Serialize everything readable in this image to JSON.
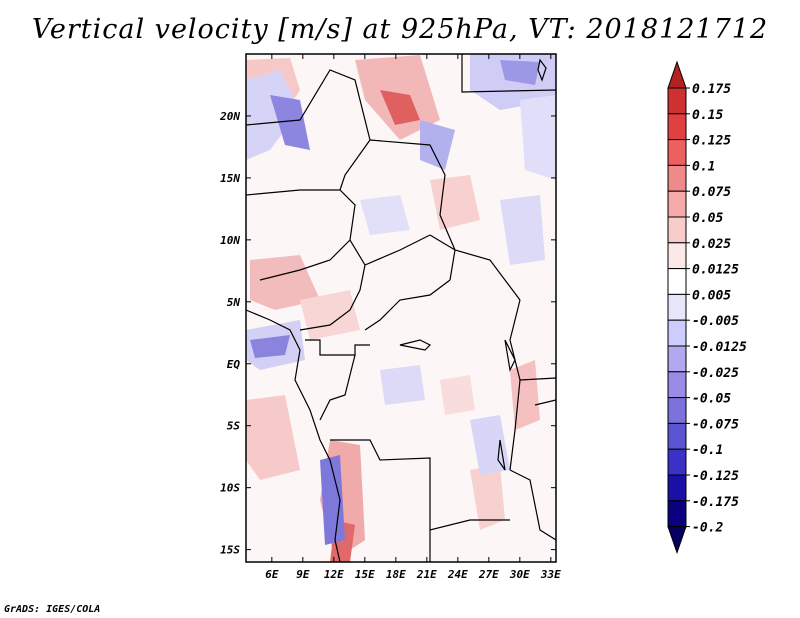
{
  "title": "Vertical velocity [m/s] at 925hPa, VT: 2018121712",
  "credit": "GrADS: IGES/COLA",
  "lon_ticks": [
    "6E",
    "9E",
    "12E",
    "15E",
    "18E",
    "21E",
    "24E",
    "27E",
    "30E",
    "33E"
  ],
  "lat_ticks": [
    "20N",
    "15N",
    "10N",
    "5N",
    "EQ",
    "5S",
    "10S",
    "15S"
  ],
  "colorbar": {
    "labels": [
      "0.175",
      "0.15",
      "0.125",
      "0.1",
      "0.075",
      "0.05",
      "0.025",
      "0.0125",
      "0.005",
      "-0.005",
      "-0.0125",
      "-0.025",
      "-0.05",
      "-0.075",
      "-0.1",
      "-0.125",
      "-0.175",
      "-0.2"
    ],
    "colors": [
      "#b22222",
      "#cf3030",
      "#e04040",
      "#ec6060",
      "#f08a8a",
      "#f5aaaa",
      "#f9cccc",
      "#fde8e8",
      "#ffffff",
      "#e6e6fa",
      "#ccccff",
      "#b0a8f0",
      "#9a8ce6",
      "#7c72dc",
      "#5c54d2",
      "#3a32c8",
      "#1a10a8",
      "#0a0080",
      "#050060"
    ]
  },
  "map_extent": {
    "lon": [
      3.5,
      33.5
    ],
    "lat": [
      -16,
      25
    ]
  }
}
